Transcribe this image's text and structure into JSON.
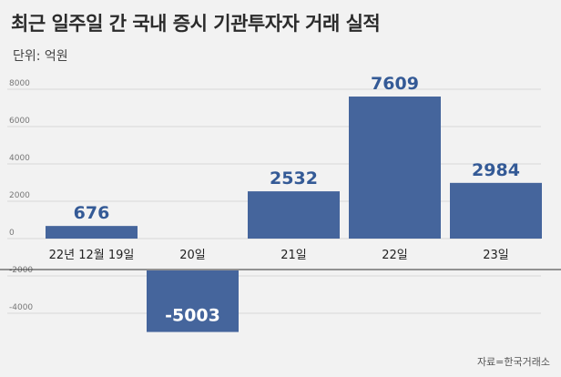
{
  "title": "최근 일주일 간 국내 증시 기관투자자 거래 실적",
  "unit_label": "단위: 억원",
  "source": "자료=한국거래소",
  "colors": {
    "bar": "#45659c",
    "value_text": "#345a96",
    "value_text_on_bar": "#ffffff",
    "grid": "#d8d8d8",
    "axis": "#333333"
  },
  "chart_data": {
    "type": "bar",
    "title": "최근 일주일 간 국내 증시 기관투자자 거래 실적",
    "categories": [
      "22년 12월 19일",
      "20일",
      "21일",
      "22일",
      "23일"
    ],
    "values": [
      676,
      -5003,
      2532,
      7609,
      2984
    ],
    "value_labels": [
      "676",
      "-5003",
      "2532",
      "7609",
      "2984"
    ],
    "yticks": [
      "8000",
      "6000",
      "4000",
      "2000",
      "0",
      "-2000",
      "-4000"
    ],
    "ylabel": "단위: 억원",
    "xlabel": "",
    "ylim": [
      -5000,
      8000
    ],
    "grid": true
  }
}
